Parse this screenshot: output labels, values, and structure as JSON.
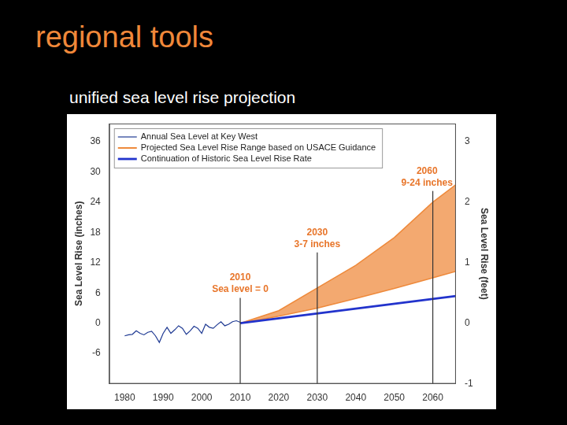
{
  "chart_data": {
    "type": "line",
    "title": "regional tools",
    "subtitle": "unified sea level rise projection",
    "y_label": "Sea Level Rise (inches)",
    "y2_label": "Sea Level Rise (feet)",
    "xlim": [
      1976,
      2066
    ],
    "xticks": [
      1980,
      1990,
      2000,
      2010,
      2020,
      2030,
      2040,
      2050,
      2060
    ],
    "ylim": [
      -12,
      39.6
    ],
    "yticks": [
      -6,
      0,
      6,
      12,
      18,
      24,
      30,
      36
    ],
    "y2lim": [
      -1,
      3.3
    ],
    "y2ticks": [
      -1,
      0,
      1,
      2,
      3
    ],
    "grid": false,
    "legend": "upper left",
    "series": [
      {
        "name": "Annual Sea Level at Key West",
        "color": "#1f3a93",
        "type": "line",
        "x": [
          1980,
          1981,
          1982,
          1983,
          1984,
          1985,
          1986,
          1987,
          1988,
          1989,
          1990,
          1991,
          1992,
          1993,
          1994,
          1995,
          1996,
          1997,
          1998,
          1999,
          2000,
          2001,
          2002,
          2003,
          2004,
          2005,
          2006,
          2007,
          2008,
          2009,
          2010
        ],
        "values": [
          -2.5,
          -2.3,
          -2.2,
          -1.5,
          -2.0,
          -2.3,
          -1.8,
          -1.6,
          -2.5,
          -3.8,
          -2.0,
          -0.8,
          -2.0,
          -1.3,
          -0.5,
          -1.0,
          -2.2,
          -1.5,
          -0.6,
          -1.0,
          -2.0,
          -0.2,
          -0.8,
          -1.0,
          -0.3,
          0.3,
          -0.5,
          -0.2,
          0.3,
          0.5,
          0.2
        ]
      },
      {
        "name": "Projected Sea Level Rise Range based on USACE Guidance",
        "color": "#ee8a3c",
        "type": "band",
        "x": [
          2010,
          2020,
          2030,
          2040,
          2050,
          2060,
          2066
        ],
        "low": [
          0,
          1.4,
          3,
          4.9,
          6.9,
          9,
          10.3
        ],
        "high": [
          0,
          2.5,
          7,
          11.5,
          17,
          24,
          27.5
        ]
      },
      {
        "name": "Continuation of Historic Sea Level Rise Rate",
        "color": "#2233cc",
        "type": "line",
        "x": [
          2010,
          2066
        ],
        "values": [
          0,
          5.4
        ]
      }
    ],
    "annotations": [
      {
        "x": 2010,
        "y": 5.5,
        "text": [
          "2010",
          "Sea level = 0"
        ]
      },
      {
        "x": 2030,
        "y": 14.5,
        "text": [
          "2030",
          "3-7 inches"
        ]
      },
      {
        "x": 2060,
        "y": 26.7,
        "text": [
          "2060",
          "9-24 inches"
        ]
      }
    ]
  }
}
